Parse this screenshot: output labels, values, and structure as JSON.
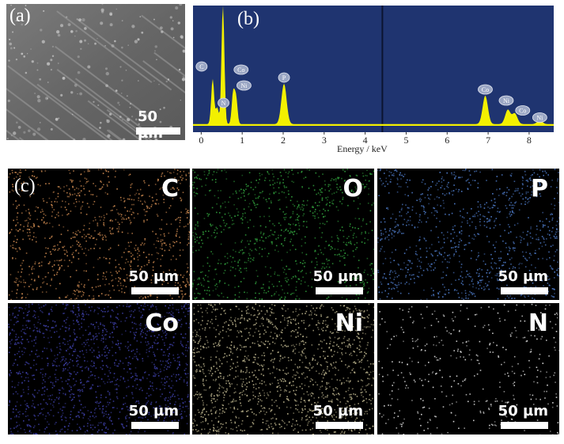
{
  "panel_a": {
    "label": "(a)",
    "scale": "50 µm"
  },
  "panel_b": {
    "label": "(b)",
    "xlabel": "Energy / keV",
    "bg_color": "#1f3470",
    "trace_color": "#f3f000",
    "peak_tags": [
      "C",
      "O",
      "N",
      "Co",
      "Ni",
      "P",
      "Co",
      "Ni",
      "Co",
      "Ni"
    ]
  },
  "panel_c": {
    "label": "(c)"
  },
  "maps": [
    {
      "element": "C",
      "scale": "50 µm",
      "color": "#c8864e"
    },
    {
      "element": "O",
      "scale": "50 µm",
      "color": "#2f9a3a"
    },
    {
      "element": "P",
      "scale": "50 µm",
      "color": "#4c78c4"
    },
    {
      "element": "Co",
      "scale": "50 µm",
      "color": "#3d3fa6"
    },
    {
      "element": "Ni",
      "scale": "50 µm",
      "color": "#b8b08a"
    },
    {
      "element": "N",
      "scale": "50 µm",
      "color": "#d8d8d8"
    }
  ],
  "chart_data": {
    "type": "line",
    "xlabel": "Energy / keV",
    "ylabel": "",
    "xlim": [
      -0.2,
      8.6
    ],
    "x_ticks": [
      0,
      1,
      2,
      3,
      4,
      5,
      6,
      7,
      8
    ],
    "peaks": [
      {
        "label": "C",
        "x": 0.28,
        "y": 0.38
      },
      {
        "label": "N",
        "x": 0.39,
        "y": 0.14
      },
      {
        "label": "O",
        "x": 0.53,
        "y": 1.0
      },
      {
        "label": "Co",
        "x": 0.78,
        "y": 0.26
      },
      {
        "label": "Ni",
        "x": 0.85,
        "y": 0.22
      },
      {
        "label": "P",
        "x": 2.02,
        "y": 0.34
      },
      {
        "label": "Co",
        "x": 6.93,
        "y": 0.24
      },
      {
        "label": "Ni",
        "x": 7.48,
        "y": 0.12
      },
      {
        "label": "Co",
        "x": 7.65,
        "y": 0.09
      },
      {
        "label": "Ni",
        "x": 8.26,
        "y": 0.03
      }
    ]
  }
}
